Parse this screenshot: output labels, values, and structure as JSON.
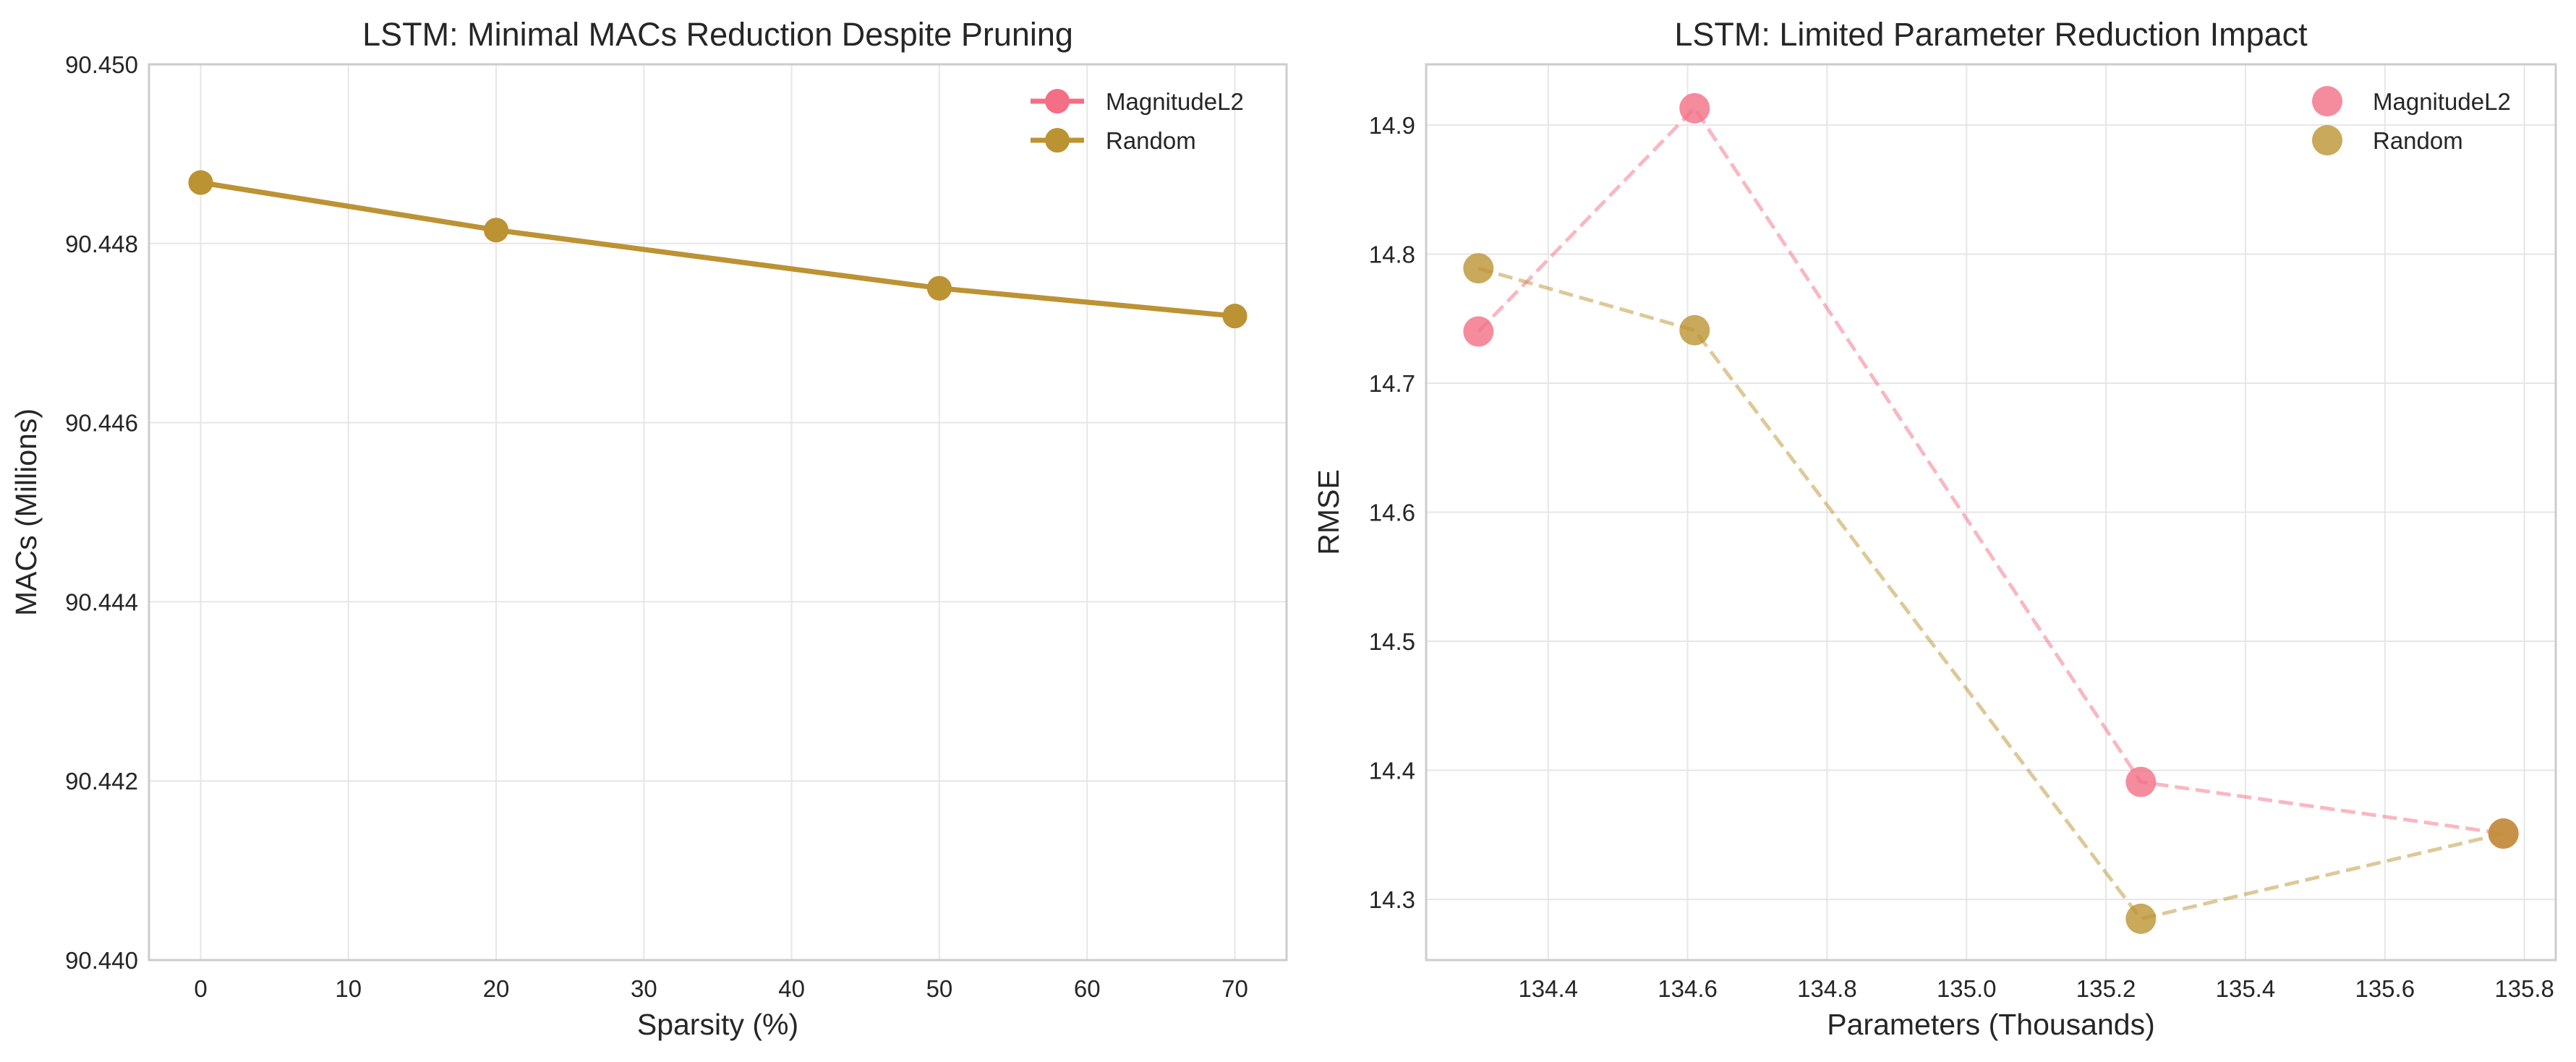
{
  "chart_data": [
    {
      "type": "line",
      "title": "LSTM: Minimal MACs Reduction Despite Pruning",
      "xlabel": "Sparsity (%)",
      "ylabel": "MACs (Millions)",
      "xlim": [
        -3.5,
        73.5
      ],
      "ylim": [
        90.44,
        90.45
      ],
      "xticks": [
        0,
        10,
        20,
        30,
        40,
        50,
        60,
        70
      ],
      "xtick_labels": [
        "0",
        "10",
        "20",
        "30",
        "40",
        "50",
        "60",
        "70"
      ],
      "yticks": [
        90.44,
        90.442,
        90.444,
        90.446,
        90.448,
        90.45
      ],
      "ytick_labels": [
        "90.440",
        "90.442",
        "90.444",
        "90.446",
        "90.448",
        "90.450"
      ],
      "grid": true,
      "legend_position": "top-right",
      "series": [
        {
          "name": "MagnitudeL2",
          "color": "#f36f85",
          "x": [
            0,
            20,
            50,
            70
          ],
          "y": [
            90.44868,
            90.44815,
            90.4475,
            90.44719
          ]
        },
        {
          "name": "Random",
          "color": "#bb9332",
          "x": [
            0,
            20,
            50,
            70
          ],
          "y": [
            90.44868,
            90.44815,
            90.4475,
            90.44719
          ]
        }
      ]
    },
    {
      "type": "scatter",
      "title": "LSTM: Limited Parameter Reduction Impact",
      "xlabel": "Parameters (Thousands)",
      "ylabel": "RMSE",
      "xlim": [
        134.225,
        135.845
      ],
      "ylim": [
        14.253,
        14.947
      ],
      "xticks": [
        134.4,
        134.6,
        134.8,
        135.0,
        135.2,
        135.4,
        135.6,
        135.8
      ],
      "xtick_labels": [
        "134.4",
        "134.6",
        "134.8",
        "135.0",
        "135.2",
        "135.4",
        "135.6",
        "135.8"
      ],
      "yticks": [
        14.3,
        14.4,
        14.5,
        14.6,
        14.7,
        14.8,
        14.9
      ],
      "ytick_labels": [
        "14.3",
        "14.4",
        "14.5",
        "14.6",
        "14.7",
        "14.8",
        "14.9"
      ],
      "grid": true,
      "legend_position": "top-right",
      "series": [
        {
          "name": "MagnitudeL2",
          "color": "#f36f85",
          "x": [
            134.3,
            134.61,
            135.25,
            135.77
          ],
          "y": [
            14.74,
            14.913,
            14.391,
            14.351
          ]
        },
        {
          "name": "Random",
          "color": "#bb9332",
          "x": [
            134.3,
            134.61,
            135.25,
            135.77
          ],
          "y": [
            14.789,
            14.741,
            14.285,
            14.351
          ]
        }
      ]
    }
  ]
}
